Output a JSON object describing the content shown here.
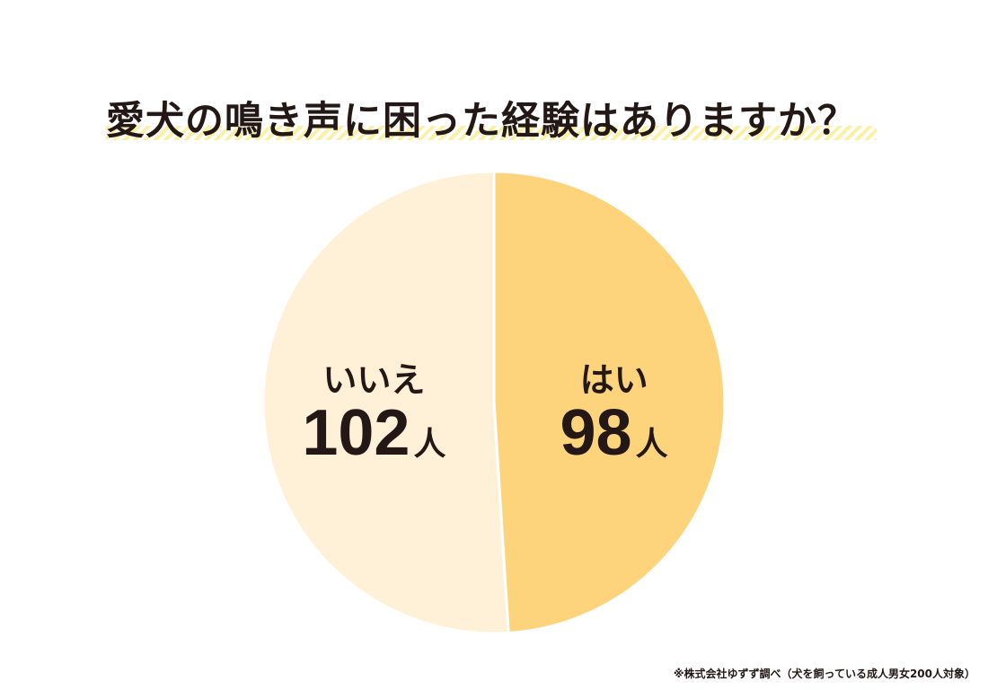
{
  "chart_data": {
    "type": "pie",
    "title": "愛犬の鳴き声に困った経験はありますか？",
    "slices": [
      {
        "label": "はい",
        "value": 98,
        "unit": "人",
        "color": "#fdd37c"
      },
      {
        "label": "いいえ",
        "value": 102,
        "unit": "人",
        "color": "#fff0d8"
      }
    ],
    "start": "12 o'clock",
    "direction": "clockwise",
    "legend": "none (labels inside slices)"
  },
  "footnote": "※株式会社ゆずず調べ（犬を飼っている成人男女200人対象）",
  "colors": {
    "text": "#231815",
    "slice_border": "#ffffff",
    "title_underline": "#fbf0a6"
  }
}
